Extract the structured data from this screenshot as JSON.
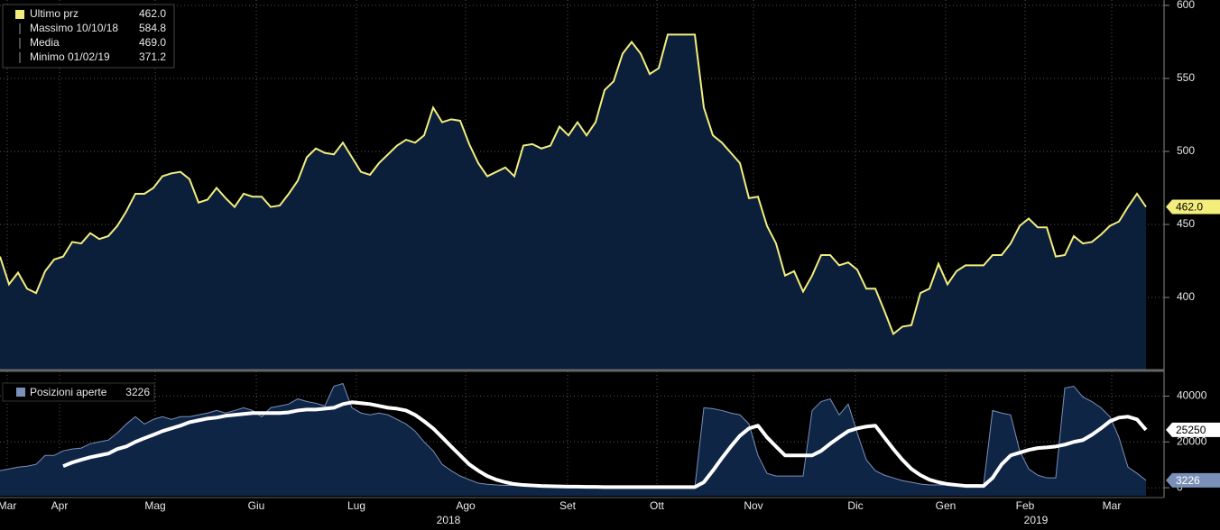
{
  "chart_data": [
    {
      "type": "area",
      "ylim": [
        350,
        600
      ],
      "yticks": [
        400,
        450,
        500,
        550,
        600
      ],
      "grid": true,
      "series": [
        {
          "name": "Ultimo prz",
          "color": "#f3ee7c",
          "fill": "#0b1f3b",
          "last_label": "462.0",
          "values": [
            428,
            409,
            417,
            406,
            403,
            418,
            426,
            428,
            438,
            437,
            444,
            440,
            442,
            449,
            459,
            471,
            471,
            475,
            483,
            485,
            486,
            481,
            465,
            467,
            475,
            468,
            462,
            471,
            469,
            469,
            462,
            463,
            471,
            480,
            496,
            502,
            499,
            498,
            506,
            496,
            486,
            484,
            492,
            498,
            504,
            508,
            506,
            511,
            530,
            520,
            522,
            521,
            505,
            492,
            483,
            486,
            489,
            483,
            504,
            505,
            502,
            504,
            517,
            511,
            520,
            511,
            520,
            542,
            548,
            567,
            575,
            567,
            553,
            557,
            580,
            580,
            580,
            580,
            530,
            511,
            506,
            499,
            492,
            468,
            469,
            449,
            437,
            415,
            418,
            404,
            415,
            429,
            429,
            422,
            424,
            419,
            406,
            406,
            391,
            375,
            380,
            381,
            403,
            406,
            423,
            409,
            418,
            422,
            422,
            422,
            429,
            429,
            437,
            449,
            454,
            448,
            448,
            428,
            429,
            442,
            437,
            438,
            443,
            449,
            452,
            462,
            471,
            462
          ]
        }
      ],
      "stats": [
        {
          "label": "Ultimo prz",
          "value": "462.0"
        },
        {
          "label": "Massimo 10/10/18",
          "value": "584.8"
        },
        {
          "label": "Media",
          "value": "469.0"
        },
        {
          "label": "Minimo 01/02/19",
          "value": "371.2"
        }
      ]
    },
    {
      "type": "area",
      "ylim": [
        -3500,
        50000
      ],
      "yticks": [
        0,
        20000,
        40000
      ],
      "grid": true,
      "xlim": [
        0,
        127
      ],
      "xticks": [
        {
          "value": 0.8,
          "label": "Mar"
        },
        {
          "value": 6.6,
          "label": "Apr"
        },
        {
          "value": 17.2,
          "label": "Mag"
        },
        {
          "value": 28.4,
          "label": "Giu"
        },
        {
          "value": 39.5,
          "label": "Lug"
        },
        {
          "value": 51.6,
          "label": "Ago"
        },
        {
          "value": 62.9,
          "label": "Set"
        },
        {
          "value": 72.8,
          "label": "Ott"
        },
        {
          "value": 83.5,
          "label": "Nov"
        },
        {
          "value": 94.8,
          "label": "Dic"
        },
        {
          "value": 104.8,
          "label": "Gen"
        },
        {
          "value": 113.6,
          "label": "Feb"
        },
        {
          "value": 123.2,
          "label": "Mar"
        }
      ],
      "year_labels": [
        {
          "value": 49.7,
          "label": "2018"
        },
        {
          "value": 114.8,
          "label": "2019"
        }
      ],
      "series": [
        {
          "name": "Posizioni aperte",
          "color": "#7b90b8",
          "fill": "#0f2546",
          "last_label": "3226",
          "values": [
            7450,
            8200,
            9000,
            9400,
            10200,
            14100,
            14100,
            16100,
            16900,
            17300,
            19200,
            20000,
            20800,
            23900,
            27800,
            31000,
            27800,
            29800,
            31000,
            29800,
            31000,
            31000,
            31800,
            32600,
            33700,
            32600,
            33700,
            34900,
            33700,
            31000,
            34900,
            35700,
            36500,
            38800,
            37600,
            36900,
            35700,
            44300,
            45500,
            34900,
            32600,
            31800,
            32600,
            31800,
            29800,
            27800,
            24700,
            20000,
            16100,
            10200,
            7450,
            5100,
            3500,
            2000,
            1500,
            1200,
            1000,
            1000,
            900,
            800,
            700,
            600,
            500,
            400,
            400,
            300,
            300,
            200,
            200,
            200,
            200,
            150,
            150,
            150,
            100,
            100,
            100,
            100,
            34900,
            34500,
            33700,
            32600,
            31800,
            27800,
            14100,
            6300,
            5100,
            5100,
            5100,
            5100,
            33700,
            37600,
            38800,
            31800,
            36500,
            23900,
            12200,
            7450,
            5500,
            4300,
            3100,
            2400,
            1600,
            1200,
            1200,
            1200,
            800,
            800,
            800,
            1200,
            33700,
            32600,
            31800,
            16100,
            8200,
            5500,
            4300,
            4300,
            43500,
            44300,
            39600,
            37600,
            34900,
            31000,
            22000,
            9000,
            6300,
            3226
          ]
        },
        {
          "type": "line",
          "color": "#ffffff",
          "last_label": "25250",
          "values": [
            null,
            null,
            null,
            null,
            null,
            null,
            null,
            9400,
            11000,
            12200,
            13300,
            14100,
            14900,
            16900,
            18000,
            20000,
            21600,
            23100,
            24700,
            25900,
            27100,
            28600,
            29400,
            30200,
            30600,
            31400,
            31800,
            32200,
            32600,
            32600,
            32600,
            32600,
            32900,
            33700,
            34100,
            34100,
            34500,
            34900,
            36500,
            37300,
            36900,
            36500,
            35700,
            34900,
            34500,
            33700,
            31800,
            29000,
            25900,
            22000,
            18000,
            14100,
            10200,
            7450,
            5100,
            3500,
            2400,
            1600,
            1200,
            1000,
            800,
            700,
            600,
            500,
            500,
            400,
            400,
            300,
            300,
            300,
            300,
            300,
            300,
            300,
            300,
            300,
            300,
            300,
            2400,
            7450,
            12900,
            18000,
            22700,
            25900,
            27100,
            22000,
            18000,
            14100,
            14100,
            14100,
            14100,
            16100,
            19200,
            22000,
            24700,
            25900,
            26700,
            27100,
            22000,
            16900,
            12200,
            8200,
            5500,
            3500,
            2400,
            1600,
            1200,
            800,
            800,
            800,
            4300,
            10200,
            14100,
            15300,
            16500,
            17300,
            17600,
            18000,
            18800,
            20000,
            20800,
            23100,
            25900,
            29000,
            30600,
            31000,
            29800,
            25250
          ]
        }
      ]
    }
  ]
}
